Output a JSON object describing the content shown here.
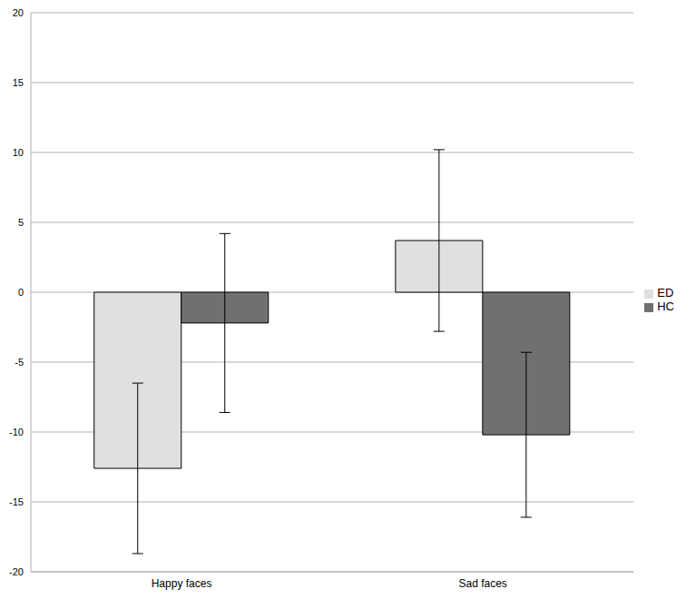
{
  "chart_data": {
    "type": "bar",
    "categories": [
      "Happy faces",
      "Sad faces"
    ],
    "series": [
      {
        "name": "ED",
        "color": "#e0e0e0",
        "values": [
          -12.6,
          3.7
        ],
        "errors": [
          6.1,
          6.5
        ]
      },
      {
        "name": "HC",
        "color": "#707070",
        "values": [
          -2.2,
          -10.2
        ],
        "errors": [
          6.4,
          5.9
        ]
      }
    ],
    "ylim": [
      -20,
      20
    ],
    "yticks": [
      -20,
      -15,
      -10,
      -5,
      0,
      5,
      10,
      15,
      20
    ],
    "grid": true,
    "legend": "right"
  }
}
